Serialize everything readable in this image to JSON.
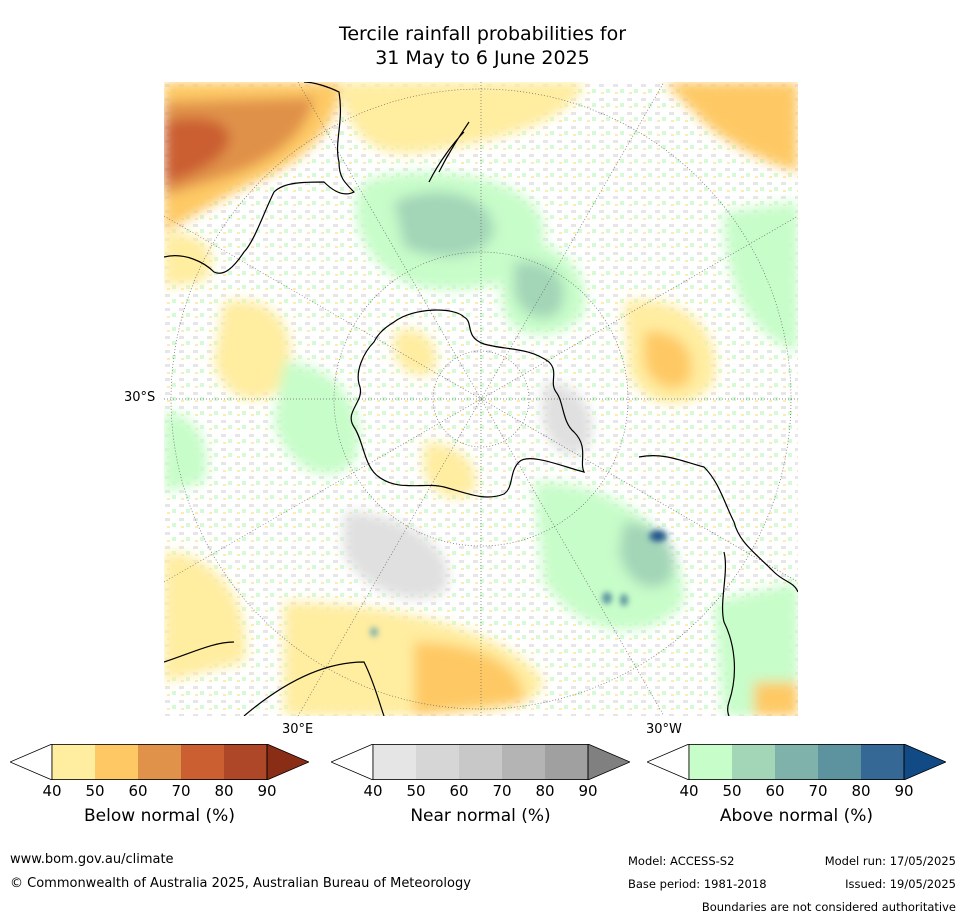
{
  "title": {
    "line1": "Tercile rainfall probabilities for",
    "line2": "31 May to 6 June 2025"
  },
  "map": {
    "projection": "south-polar-stereographic",
    "lat_labels": {
      "lat30s": "30°S"
    },
    "lon_labels": {
      "lon30e": "30°E",
      "lon30w": "30°W"
    },
    "land_outline_color": "#000000",
    "grid_color": "#777777"
  },
  "colorbars": [
    {
      "label": "Below normal (%)",
      "ticks": [
        "40",
        "50",
        "60",
        "70",
        "80",
        "90"
      ],
      "colors": [
        "#ffeda0",
        "#fec965",
        "#e0914a",
        "#cb5f32",
        "#ad4727",
        "#8a2d16"
      ]
    },
    {
      "label": "Near normal (%)",
      "ticks": [
        "40",
        "50",
        "60",
        "70",
        "80",
        "90"
      ],
      "colors": [
        "#e5e5e5",
        "#d6d6d6",
        "#c8c8c8",
        "#b4b4b4",
        "#a0a0a0",
        "#808080"
      ]
    },
    {
      "label": "Above normal (%)",
      "ticks": [
        "40",
        "50",
        "60",
        "70",
        "80",
        "90"
      ],
      "colors": [
        "#c7fdc9",
        "#a3d5b7",
        "#7fb2ab",
        "#5c939f",
        "#356895",
        "#124a86"
      ]
    }
  ],
  "footer": {
    "website": "www.bom.gov.au/climate",
    "copyright": "© Commonwealth of Australia 2025, Australian Bureau of Meteorology",
    "model": "Model: ACCESS-S2",
    "base_period": "Base period: 1981-2018",
    "model_run": "Model run: 17/05/2025",
    "issued": "Issued: 19/05/2025",
    "disclaimer": "Boundaries are not considered authoritative"
  }
}
